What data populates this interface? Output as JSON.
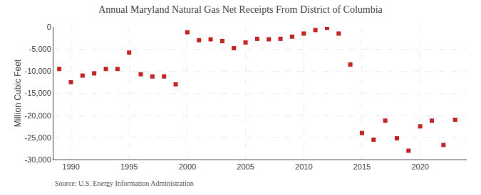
{
  "chart_data": {
    "type": "scatter",
    "title": "Annual Maryland Natural Gas Net Receipts From District of Columbia",
    "ylabel": "Million Cubic Feet",
    "annotations": [
      "Source: U.S. Energy Information Administration"
    ],
    "x": [
      1989,
      1990,
      1991,
      1992,
      1993,
      1994,
      1995,
      1996,
      1997,
      1998,
      1999,
      2000,
      2001,
      2002,
      2003,
      2004,
      2005,
      2006,
      2007,
      2008,
      2009,
      2010,
      2011,
      2012,
      2013,
      2014,
      2015,
      2016,
      2017,
      2018,
      2019,
      2020,
      2021,
      2022,
      2023
    ],
    "values": [
      -9500,
      -12500,
      -11000,
      -10500,
      -9500,
      -9500,
      -5800,
      -10700,
      -11200,
      -11200,
      -13000,
      -1200,
      -3000,
      -2800,
      -3200,
      -4800,
      -3500,
      -2700,
      -2800,
      -2700,
      -2200,
      -1500,
      -700,
      -200,
      -1500,
      -8500,
      -24000,
      -25500,
      -21200,
      -25200,
      -28000,
      -22500,
      -21200,
      -26700,
      -21000
    ],
    "color": "#cc2222",
    "marker": "square",
    "xlim": [
      1988.5,
      2024
    ],
    "ylim": [
      -30000,
      0
    ],
    "xticks": [
      1990,
      1995,
      2000,
      2005,
      2010,
      2015,
      2020
    ],
    "yticks": [
      0,
      {
        "value": -5000,
        "label": "-5,000"
      },
      {
        "value": -10000,
        "label": "-10,000"
      },
      {
        "value": -15000,
        "label": "-15,000"
      },
      {
        "value": -20000,
        "label": "-20,000"
      },
      {
        "value": -25000,
        "label": "-25,000"
      },
      {
        "value": -30000,
        "label": "-30,000"
      }
    ],
    "grid": true
  }
}
